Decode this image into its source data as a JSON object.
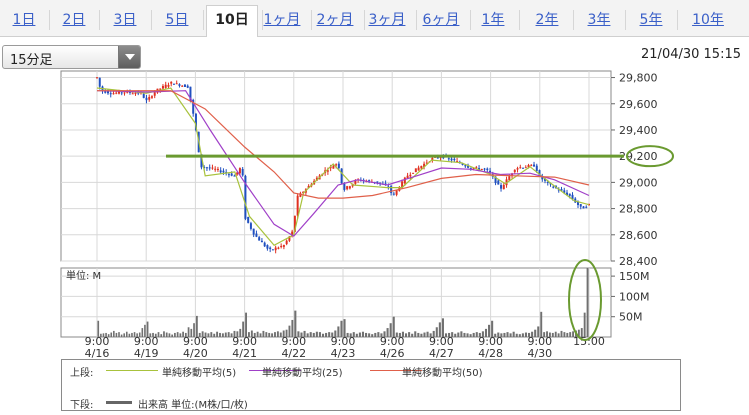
{
  "tabs": [
    {
      "label": "1日",
      "active": false
    },
    {
      "label": "2日",
      "active": false
    },
    {
      "label": "3日",
      "active": false
    },
    {
      "label": "5日",
      "active": false
    },
    {
      "label": "10日",
      "active": true
    },
    {
      "label": "1ヶ月",
      "active": false
    },
    {
      "label": "2ヶ月",
      "active": false
    },
    {
      "label": "3ヶ月",
      "active": false
    },
    {
      "label": "6ヶ月",
      "active": false
    },
    {
      "label": "1年",
      "active": false
    },
    {
      "label": "2年",
      "active": false
    },
    {
      "label": "3年",
      "active": false
    },
    {
      "label": "5年",
      "active": false
    },
    {
      "label": "10年",
      "active": false
    }
  ],
  "interval_select": {
    "value": "15分足"
  },
  "timestamp": "21/04/30 15:15",
  "legend": {
    "upper_label": "上段:",
    "lower_label": "下段:",
    "items": [
      {
        "name": "単純移動平均(5)",
        "color": "#a8c23c"
      },
      {
        "name": "単純移動平均(25)",
        "color": "#a040c8"
      },
      {
        "name": "単純移動平均(50)",
        "color": "#e0604a"
      }
    ],
    "volume_item": {
      "name": "出来高 単位:(M株/口/枚)",
      "color": "#666666"
    }
  },
  "colors": {
    "up": "#e03020",
    "down": "#2050c0",
    "volume": "#707070",
    "annotation": "#6a9a30",
    "grid": "#d8d8d8"
  },
  "chart_data": [
    {
      "type": "candlestick",
      "panel": "price",
      "x": [
        "9:00\n4/16",
        "9:00\n4/19",
        "9:00\n4/20",
        "9:00\n4/21",
        "9:00\n4/22",
        "9:00\n4/23",
        "9:00\n4/26",
        "9:00\n4/27",
        "9:00\n4/28",
        "9:00\n4/30",
        "15:00"
      ],
      "y_ticks": [
        "29,800",
        "29,600",
        "29,400",
        "29,200",
        "29,000",
        "28,800",
        "28,600",
        "28,400"
      ],
      "ylim": [
        28400,
        29850
      ],
      "grid": true,
      "price_path": [
        [
          0,
          29800
        ],
        [
          0.08,
          29700
        ],
        [
          0.3,
          29680
        ],
        [
          0.55,
          29690
        ],
        [
          0.9,
          29680
        ],
        [
          1.0,
          29620
        ],
        [
          1.2,
          29700
        ],
        [
          1.5,
          29760
        ],
        [
          1.85,
          29730
        ],
        [
          2.0,
          29430
        ],
        [
          2.1,
          29120
        ],
        [
          2.4,
          29100
        ],
        [
          2.8,
          29050
        ],
        [
          2.95,
          29130
        ],
        [
          3.0,
          28740
        ],
        [
          3.2,
          28600
        ],
        [
          3.5,
          28480
        ],
        [
          3.8,
          28520
        ],
        [
          4.0,
          28640
        ],
        [
          4.05,
          28880
        ],
        [
          4.3,
          28970
        ],
        [
          4.6,
          29080
        ],
        [
          4.9,
          29150
        ],
        [
          5.0,
          28940
        ],
        [
          5.3,
          29020
        ],
        [
          5.7,
          29000
        ],
        [
          5.95,
          28960
        ],
        [
          6.0,
          28890
        ],
        [
          6.3,
          29050
        ],
        [
          6.8,
          29180
        ],
        [
          7.0,
          29200
        ],
        [
          7.3,
          29160
        ],
        [
          7.6,
          29110
        ],
        [
          7.9,
          29100
        ],
        [
          8.0,
          29060
        ],
        [
          8.2,
          28950
        ],
        [
          8.5,
          29110
        ],
        [
          8.9,
          29130
        ],
        [
          9.0,
          29040
        ],
        [
          9.2,
          28980
        ],
        [
          9.6,
          28900
        ],
        [
          9.85,
          28800
        ],
        [
          10.0,
          28830
        ]
      ],
      "sma": [
        {
          "name": "単純移動平均(5)",
          "points": [
            [
              0,
              29720
            ],
            [
              1.0,
              29680
            ],
            [
              1.5,
              29720
            ],
            [
              2.0,
              29450
            ],
            [
              2.2,
              29050
            ],
            [
              2.8,
              29080
            ],
            [
              3.1,
              28740
            ],
            [
              3.6,
              28520
            ],
            [
              4.0,
              28600
            ],
            [
              4.2,
              28920
            ],
            [
              4.8,
              29140
            ],
            [
              5.2,
              28980
            ],
            [
              5.9,
              28960
            ],
            [
              6.2,
              28960
            ],
            [
              6.8,
              29170
            ],
            [
              7.4,
              29150
            ],
            [
              8.0,
              29060
            ],
            [
              8.3,
              28990
            ],
            [
              8.8,
              29120
            ],
            [
              9.2,
              29000
            ],
            [
              9.7,
              28860
            ],
            [
              10.0,
              28830
            ]
          ]
        },
        {
          "name": "単純移動平均(25)",
          "points": [
            [
              0,
              29700
            ],
            [
              1.0,
              29690
            ],
            [
              1.8,
              29700
            ],
            [
              2.3,
              29400
            ],
            [
              3.0,
              29000
            ],
            [
              3.6,
              28680
            ],
            [
              4.0,
              28590
            ],
            [
              4.4,
              28760
            ],
            [
              4.9,
              28980
            ],
            [
              5.3,
              29020
            ],
            [
              5.9,
              28980
            ],
            [
              6.5,
              29050
            ],
            [
              7.0,
              29110
            ],
            [
              7.6,
              29100
            ],
            [
              8.2,
              29060
            ],
            [
              8.8,
              29070
            ],
            [
              9.3,
              29020
            ],
            [
              10.0,
              28900
            ]
          ]
        },
        {
          "name": "単純移動平均(50)",
          "points": [
            [
              0,
              29700
            ],
            [
              1.5,
              29700
            ],
            [
              2.2,
              29560
            ],
            [
              3.0,
              29270
            ],
            [
              3.6,
              29080
            ],
            [
              4.0,
              28920
            ],
            [
              4.5,
              28880
            ],
            [
              5.0,
              28880
            ],
            [
              5.6,
              28900
            ],
            [
              6.3,
              28960
            ],
            [
              7.0,
              29030
            ],
            [
              7.7,
              29060
            ],
            [
              8.5,
              29050
            ],
            [
              9.3,
              29040
            ],
            [
              10.0,
              28980
            ]
          ]
        }
      ],
      "annotations": [
        {
          "type": "horizontal_line",
          "value": 29200
        },
        {
          "type": "ellipse",
          "around": "29,200"
        }
      ]
    },
    {
      "type": "bar",
      "panel": "volume",
      "ylabel": "単位: M",
      "y_ticks": [
        "150M",
        "100M",
        "50M"
      ],
      "ylim": [
        0,
        170
      ],
      "sessions": 10,
      "session_volumes": [
        [
          40,
          8,
          9,
          10,
          7,
          11,
          15,
          10,
          12,
          6,
          9,
          13,
          8,
          10,
          12,
          9,
          11,
          22,
          30
        ],
        [
          38,
          9,
          10,
          8,
          12,
          7,
          14,
          11,
          9,
          6,
          10,
          12,
          9,
          13,
          10,
          24,
          20,
          34
        ],
        [
          52,
          10,
          14,
          11,
          9,
          12,
          8,
          13,
          10,
          9,
          11,
          12,
          9,
          15,
          14,
          20,
          38
        ],
        [
          60,
          12,
          16,
          10,
          13,
          9,
          15,
          12,
          10,
          9,
          12,
          14,
          11,
          16,
          18,
          28,
          42
        ],
        [
          65,
          14,
          11,
          15,
          9,
          12,
          10,
          13,
          12,
          8,
          10,
          12,
          11,
          16,
          26,
          40
        ],
        [
          44,
          10,
          9,
          12,
          8,
          11,
          13,
          10,
          9,
          7,
          10,
          12,
          9,
          14,
          22,
          34
        ],
        [
          50,
          11,
          10,
          13,
          9,
          12,
          8,
          14,
          10,
          8,
          11,
          13,
          9,
          15,
          24,
          36
        ],
        [
          46,
          9,
          10,
          12,
          8,
          11,
          14,
          10,
          9,
          7,
          10,
          12,
          10,
          14,
          20,
          30
        ],
        [
          40,
          8,
          11,
          9,
          10,
          12,
          9,
          13,
          8,
          7,
          9,
          11,
          10,
          13,
          18,
          26
        ],
        [
          62,
          12,
          14,
          11,
          10,
          13,
          9,
          15,
          12,
          10,
          12,
          14,
          16,
          18,
          22,
          60,
          170
        ]
      ],
      "annotations": [
        {
          "type": "ellipse",
          "around": "15:00 volume bar"
        }
      ]
    }
  ]
}
